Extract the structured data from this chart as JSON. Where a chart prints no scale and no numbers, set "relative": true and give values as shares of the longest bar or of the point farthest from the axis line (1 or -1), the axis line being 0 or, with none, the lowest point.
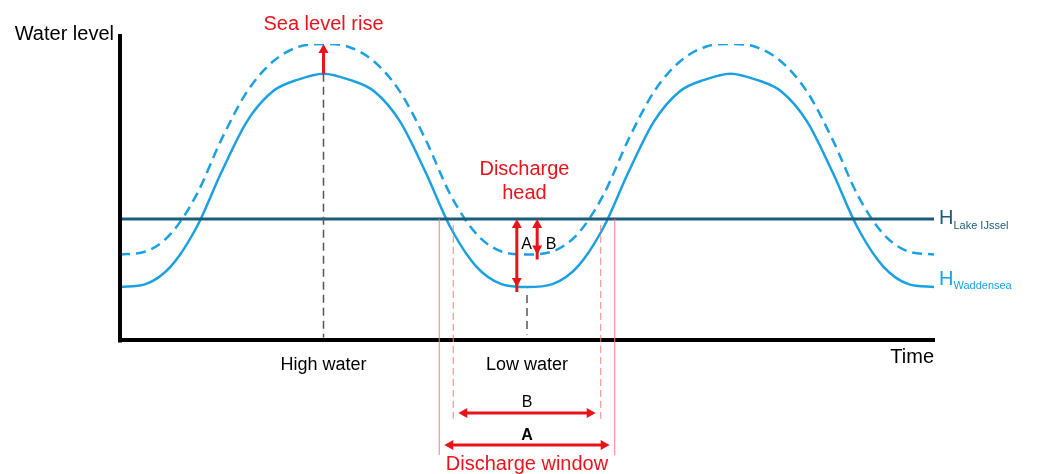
{
  "chart_data": {
    "type": "line",
    "relative": true,
    "xlabel": "Time",
    "ylabel": "Water level",
    "categories": [
      null,
      null,
      null,
      null,
      null,
      null,
      null,
      null,
      "High water",
      null,
      null,
      null,
      null,
      null,
      null,
      null,
      "Low water",
      null,
      null,
      null,
      null,
      null,
      null,
      null,
      null,
      null,
      null,
      null,
      null,
      null,
      null,
      null,
      null
    ],
    "series": [
      {
        "name": "H$_{Waddensea}$",
        "color": "#1ba1e2",
        "values": [
          0.18,
          0.19,
          0.25,
          0.38,
          0.57,
          0.74,
          0.84,
          0.88,
          0.9,
          0.88,
          0.84,
          0.74,
          0.57,
          0.38,
          0.25,
          0.19,
          0.18,
          0.19,
          0.25,
          0.38,
          0.57,
          0.74,
          0.84,
          0.88,
          0.9,
          0.88,
          0.84,
          0.74,
          0.57,
          0.38,
          0.25,
          0.19,
          0.18
        ]
      },
      {
        "color": "#1ba1e2",
        "line_style": "dashed",
        "values": [
          0.29,
          0.3,
          0.36,
          0.49,
          0.68,
          0.84,
          0.94,
          0.99,
          1,
          0.99,
          0.94,
          0.84,
          0.68,
          0.49,
          0.36,
          0.3,
          0.29,
          0.3,
          0.36,
          0.49,
          0.68,
          0.84,
          0.94,
          0.99,
          1,
          0.99,
          0.94,
          0.84,
          0.68,
          0.49,
          0.36,
          0.3,
          0.29
        ]
      }
    ],
    "ref_lines": [
      {
        "axis": "y",
        "value": 0.41,
        "label": "H$_{Lake IJssel}$",
        "color": "#1d5b79"
      }
    ],
    "annotations": [
      "Sea level rise",
      "Discharge head",
      "A",
      "B",
      "B",
      "A",
      "Discharge window"
    ],
    "grid": false,
    "legend": false
  }
}
